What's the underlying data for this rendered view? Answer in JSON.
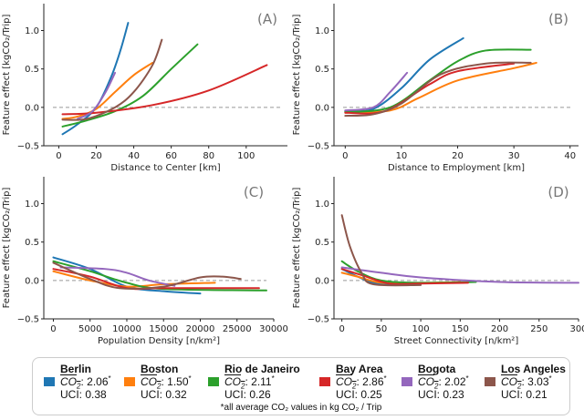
{
  "chart_data": [
    {
      "type": "line",
      "panel_label": "(A)",
      "xlabel": "Distance to Center [km]",
      "ylabel": "Feature effect [kgCO₂/Trip]",
      "xlim": [
        -8,
        122
      ],
      "ylim": [
        -0.5,
        1.35
      ],
      "xticks": [
        0,
        20,
        40,
        60,
        80,
        100
      ],
      "yticks": [
        -0.5,
        0.0,
        0.5,
        1.0
      ],
      "reference_line": 0,
      "series": [
        {
          "name": "Berlin",
          "x": [
            2,
            10,
            20,
            28,
            33,
            37
          ],
          "y": [
            -0.35,
            -0.22,
            0.0,
            0.4,
            0.75,
            1.1
          ]
        },
        {
          "name": "Boston",
          "x": [
            2,
            10,
            20,
            30,
            40,
            50
          ],
          "y": [
            -0.15,
            -0.12,
            -0.02,
            0.2,
            0.42,
            0.58
          ]
        },
        {
          "name": "Rio de Janeiro",
          "x": [
            2,
            15,
            30,
            45,
            60,
            74
          ],
          "y": [
            -0.25,
            -0.17,
            -0.05,
            0.15,
            0.5,
            0.82
          ]
        },
        {
          "name": "Bay Area",
          "x": [
            2,
            20,
            50,
            80,
            111
          ],
          "y": [
            -0.09,
            -0.07,
            0.03,
            0.22,
            0.55
          ]
        },
        {
          "name": "Bogota",
          "x": [
            10,
            18,
            25,
            30
          ],
          "y": [
            -0.15,
            -0.05,
            0.2,
            0.45
          ]
        },
        {
          "name": "Los Angeles",
          "x": [
            2,
            15,
            30,
            40,
            50,
            55
          ],
          "y": [
            -0.16,
            -0.15,
            0.0,
            0.2,
            0.55,
            0.88
          ]
        }
      ]
    },
    {
      "type": "line",
      "panel_label": "(B)",
      "xlabel": "Distance to Employment [km]",
      "ylabel": "Feature effect [kgCO₂/Trip]",
      "xlim": [
        -2,
        41.5
      ],
      "ylim": [
        -0.5,
        1.35
      ],
      "xticks": [
        0,
        10,
        20,
        30,
        40
      ],
      "yticks": [
        -0.5,
        0.0,
        0.5,
        1.0
      ],
      "reference_line": 0,
      "series": [
        {
          "name": "Berlin",
          "x": [
            0,
            5,
            10,
            15,
            21
          ],
          "y": [
            -0.05,
            -0.02,
            0.25,
            0.62,
            0.9
          ]
        },
        {
          "name": "Boston",
          "x": [
            0,
            8,
            13,
            20,
            30,
            34
          ],
          "y": [
            -0.07,
            -0.04,
            0.12,
            0.35,
            0.51,
            0.58
          ]
        },
        {
          "name": "Rio de Janeiro",
          "x": [
            0,
            8,
            15,
            20,
            25,
            33
          ],
          "y": [
            -0.06,
            0.0,
            0.35,
            0.6,
            0.74,
            0.75
          ]
        },
        {
          "name": "Bay Area",
          "x": [
            0,
            7,
            15,
            20,
            30
          ],
          "y": [
            -0.07,
            -0.05,
            0.3,
            0.47,
            0.57
          ]
        },
        {
          "name": "Bogota",
          "x": [
            0,
            5,
            8,
            11
          ],
          "y": [
            -0.04,
            0.0,
            0.2,
            0.45
          ]
        },
        {
          "name": "Los Angeles",
          "x": [
            0,
            5,
            10,
            17,
            25,
            33
          ],
          "y": [
            -0.11,
            -0.09,
            0.05,
            0.43,
            0.57,
            0.58
          ]
        }
      ]
    },
    {
      "type": "line",
      "panel_label": "(C)",
      "xlabel": "Population Density [n/km²]",
      "ylabel": "Feature effect [kgCO₂/Trip]",
      "xlim": [
        -1300,
        30000
      ],
      "ylim": [
        -0.5,
        1.35
      ],
      "xticks": [
        0,
        5000,
        10000,
        15000,
        20000,
        25000,
        30000
      ],
      "yticks": [
        -0.5,
        0.0,
        0.5,
        1.0
      ],
      "reference_line": 0,
      "series": [
        {
          "name": "Berlin",
          "x": [
            0,
            5000,
            10000,
            15000,
            20000
          ],
          "y": [
            0.3,
            0.15,
            -0.08,
            -0.14,
            -0.17
          ]
        },
        {
          "name": "Boston",
          "x": [
            0,
            5000,
            10000,
            15000,
            22000
          ],
          "y": [
            0.12,
            0.0,
            -0.08,
            -0.05,
            -0.03
          ]
        },
        {
          "name": "Rio de Janeiro",
          "x": [
            0,
            5000,
            10000,
            15000,
            29000
          ],
          "y": [
            0.25,
            0.12,
            -0.03,
            -0.11,
            -0.13
          ]
        },
        {
          "name": "Bay Area",
          "x": [
            0,
            5000,
            10000,
            15000,
            28000
          ],
          "y": [
            0.15,
            0.05,
            -0.1,
            -0.1,
            -0.1
          ]
        },
        {
          "name": "Bogota",
          "x": [
            1000,
            7000,
            10000,
            13000,
            16500
          ],
          "y": [
            0.17,
            0.15,
            0.1,
            0.0,
            -0.07
          ]
        },
        {
          "name": "Los Angeles",
          "x": [
            0,
            5000,
            9000,
            15000,
            20000,
            23000,
            25500
          ],
          "y": [
            0.23,
            0.02,
            -0.1,
            -0.08,
            0.04,
            0.05,
            0.02
          ]
        }
      ]
    },
    {
      "type": "line",
      "panel_label": "(D)",
      "xlabel": "Street Connectivity [n/km²]",
      "ylabel": "Feature effect [kgCO₂/Trip]",
      "xlim": [
        -10,
        300
      ],
      "ylim": [
        -0.5,
        1.35
      ],
      "xticks": [
        0,
        50,
        100,
        150,
        200,
        250,
        300
      ],
      "yticks": [
        -0.5,
        0.0,
        0.5,
        1.0
      ],
      "reference_line": 0,
      "series": [
        {
          "name": "Berlin",
          "x": [
            0,
            20,
            40,
            70,
            100
          ],
          "y": [
            0.15,
            0.05,
            -0.03,
            -0.06,
            -0.04
          ]
        },
        {
          "name": "Boston",
          "x": [
            0,
            20,
            50,
            100,
            150
          ],
          "y": [
            0.1,
            0.05,
            -0.03,
            -0.03,
            -0.02
          ]
        },
        {
          "name": "Rio de Janeiro",
          "x": [
            0,
            20,
            50,
            100,
            170
          ],
          "y": [
            0.25,
            0.12,
            0.0,
            -0.03,
            -0.02
          ]
        },
        {
          "name": "Bay Area",
          "x": [
            0,
            25,
            60,
            100,
            160
          ],
          "y": [
            0.15,
            0.07,
            -0.04,
            -0.04,
            -0.03
          ]
        },
        {
          "name": "Bogota",
          "x": [
            0,
            50,
            100,
            200,
            300
          ],
          "y": [
            0.17,
            0.1,
            0.04,
            -0.02,
            -0.03
          ]
        },
        {
          "name": "Los Angeles",
          "x": [
            0,
            10,
            25,
            40,
            100
          ],
          "y": [
            0.85,
            0.45,
            0.1,
            -0.05,
            -0.06
          ]
        }
      ]
    }
  ],
  "legend": {
    "items": [
      {
        "name": "Berlin",
        "color": "#1f77b4",
        "co2_value": "2.06",
        "uci": "UCI: 0.38"
      },
      {
        "name": "Boston",
        "color": "#ff7f0e",
        "co2_value": "1.50",
        "uci": "UCI: 0.32"
      },
      {
        "name": "Rio de Janeiro",
        "color": "#2ca02c",
        "co2_value": "2.11",
        "uci": "UCI: 0.26"
      },
      {
        "name": "Bay Area",
        "color": "#d62728",
        "co2_value": "2.86",
        "uci": "UCI: 0.25"
      },
      {
        "name": "Bogota",
        "color": "#9467bd",
        "co2_value": "2.02",
        "uci": "UCI: 0.23"
      },
      {
        "name": "Los Angeles",
        "color": "#8c564b",
        "co2_value": "3.03",
        "uci": "UCI: 0.21"
      }
    ],
    "co2_symbol": "CO",
    "co2_subscript": "2",
    "co2_suffix": ":",
    "asterisk": "*",
    "footnote": "*all average CO₂ values in kg CO₂ / Trip"
  }
}
